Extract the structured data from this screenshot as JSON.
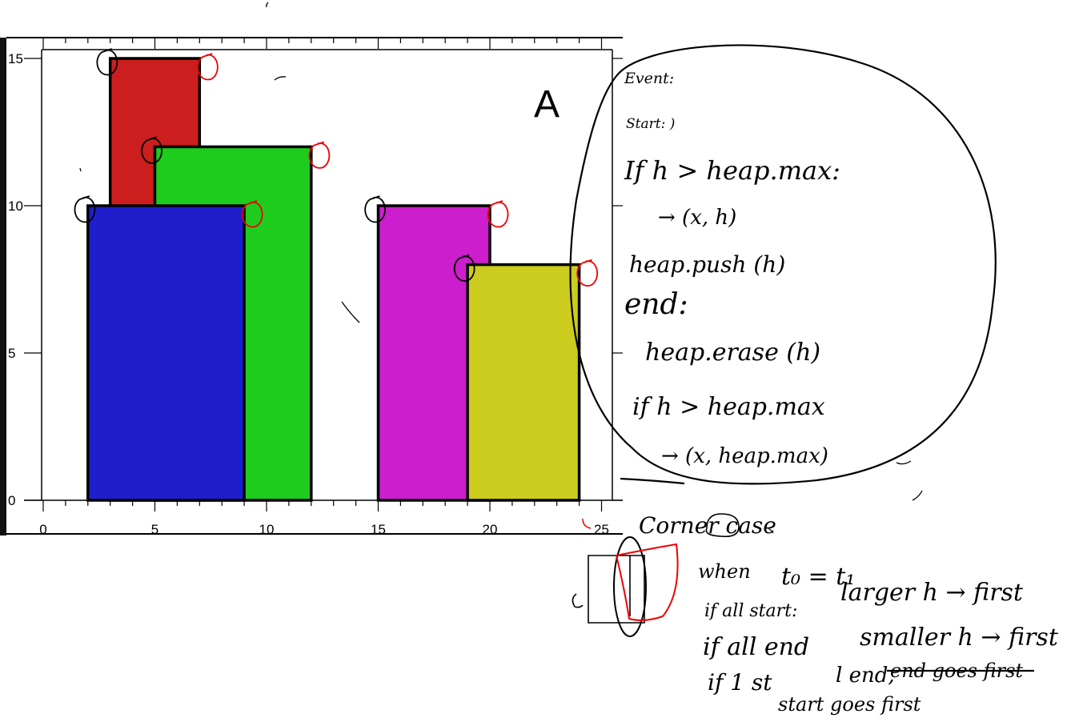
{
  "chart_data": {
    "type": "bar",
    "panel_label": "A",
    "x_ticks": [
      "0",
      "5",
      "10",
      "15",
      "20",
      "25"
    ],
    "y_ticks": [
      "0",
      "5",
      "10",
      "15"
    ],
    "xlim": [
      0,
      25
    ],
    "ylim": [
      0,
      15
    ],
    "buildings": [
      {
        "left": 3,
        "right": 7,
        "height": 15,
        "color": "#cc1e1e"
      },
      {
        "left": 5,
        "right": 12,
        "height": 12,
        "color": "#1ecc1e"
      },
      {
        "left": 2,
        "right": 9,
        "height": 10,
        "color": "#1e1ecc"
      },
      {
        "left": 15,
        "right": 20,
        "height": 10,
        "color": "#cc1ecc"
      },
      {
        "left": 19,
        "right": 24,
        "height": 8,
        "color": "#cccc1e"
      }
    ],
    "start_markers": [
      [
        3,
        15
      ],
      [
        5,
        12
      ],
      [
        2,
        10
      ],
      [
        15,
        10
      ],
      [
        19,
        8
      ]
    ],
    "end_markers": [
      [
        7,
        15
      ],
      [
        12,
        12
      ],
      [
        9,
        10
      ],
      [
        20,
        10
      ],
      [
        24,
        8
      ]
    ]
  },
  "notes": {
    "event": "Event:",
    "start": "Start: )",
    "if_h": "If h > heap.max:",
    "arrow_xh": "→ (x, h)",
    "heap_push": "heap.push (h)",
    "end": "end:",
    "heap_erase": "heap.erase (h)",
    "if_h2": "if h > heap.max",
    "arrow_heapmax": "→ (x, heap.max)",
    "corner_case": "Corner case",
    "when": "when",
    "when_eq": "t₀ = t₁",
    "all_start": "if all start:",
    "larger_h": "larger h → first",
    "all_end": "if all end",
    "smaller_h": "smaller h → first",
    "one_start": "if 1 st",
    "one_end": "l end,",
    "strike": "end goes first",
    "start_goes": "start goes first"
  }
}
